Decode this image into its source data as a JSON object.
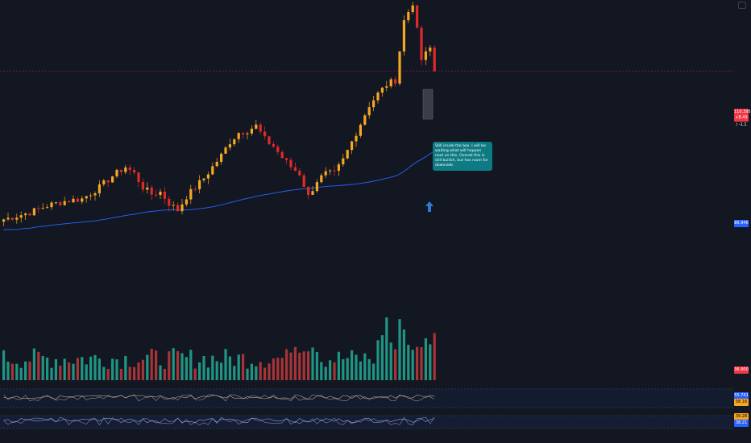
{
  "chart_data": {
    "type": "candlestick",
    "candle_count": 100,
    "price_range": [
      0,
      120
    ],
    "price_panel": {
      "ylim": [
        0,
        120
      ],
      "last_price_line": true
    },
    "anchor_closes": [
      [
        0,
        38
      ],
      [
        6,
        41
      ],
      [
        10,
        44
      ],
      [
        14,
        46
      ],
      [
        18,
        47
      ],
      [
        22,
        52
      ],
      [
        25,
        57
      ],
      [
        28,
        61
      ],
      [
        30,
        58
      ],
      [
        32,
        52
      ],
      [
        34,
        49
      ],
      [
        36,
        50
      ],
      [
        38,
        45
      ],
      [
        40,
        42
      ],
      [
        42,
        48
      ],
      [
        44,
        52
      ],
      [
        46,
        56
      ],
      [
        48,
        61
      ],
      [
        50,
        66
      ],
      [
        52,
        72
      ],
      [
        54,
        76
      ],
      [
        56,
        77
      ],
      [
        58,
        79
      ],
      [
        60,
        73
      ],
      [
        62,
        70
      ],
      [
        64,
        65
      ],
      [
        66,
        61
      ],
      [
        68,
        58
      ],
      [
        70,
        48
      ],
      [
        72,
        55
      ],
      [
        74,
        58
      ],
      [
        76,
        58
      ],
      [
        78,
        64
      ],
      [
        80,
        72
      ],
      [
        82,
        80
      ],
      [
        84,
        88
      ],
      [
        86,
        93
      ],
      [
        88,
        97
      ],
      [
        90,
        99
      ],
      [
        92,
        125
      ],
      [
        94,
        133
      ],
      [
        96,
        108
      ],
      [
        98,
        113
      ],
      [
        99,
        103
      ]
    ],
    "moving_average": {
      "visible": true,
      "color": "#2962ff"
    },
    "volume_panel": {
      "visible": true
    },
    "oscillator_1": {
      "visible": true
    },
    "oscillator_2": {
      "visible": true
    }
  },
  "annotation": {
    "text": "Still inside the box. I will be waiting what will happen next on this. Overall this is still bullish, but has room for downside."
  },
  "axis_tags": {
    "price": {
      "value": "110.395",
      "sub": "+8.49 / -1.1",
      "color": "#f23645"
    },
    "ma": {
      "value": "86.946",
      "color": "#2962ff"
    },
    "volume": {
      "value": "36.900",
      "color": "#f23645"
    },
    "osc1": {
      "value": "55.741",
      "color": "#2962ff"
    },
    "osc1b": {
      "value": "58.16",
      "color": "#f5a623"
    },
    "osc2": {
      "value": "39.28",
      "color": "#f5a623"
    },
    "osc2b": {
      "value": "38.21",
      "color": "#2962ff"
    }
  },
  "colors": {
    "up": "#f5a623",
    "down": "#e02a2a",
    "vol_up": "#22ab94",
    "vol_down": "#c23a3a",
    "ma": "#2962ff"
  }
}
